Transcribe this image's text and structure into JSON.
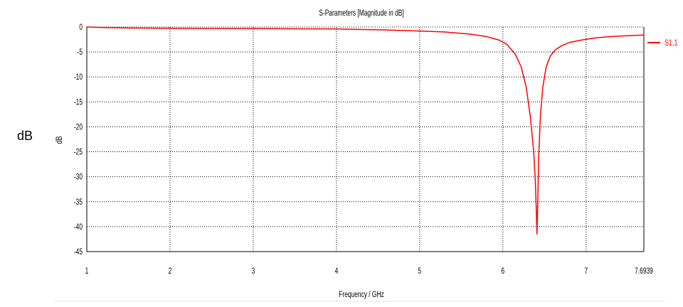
{
  "page": {
    "outer_ylabel": "dB"
  },
  "chart_data": {
    "type": "line",
    "title": "S-Parameters [Magnitude in dB]",
    "xlabel": "Frequency / GHz",
    "ylabel": "dB",
    "xlim": [
      1,
      7.6939
    ],
    "ylim": [
      -45,
      0
    ],
    "x_ticks": [
      1,
      2,
      3,
      4,
      5,
      6,
      7,
      7.6939
    ],
    "x_tick_labels": [
      "1",
      "2",
      "3",
      "4",
      "5",
      "6",
      "7",
      "7.6939"
    ],
    "y_ticks": [
      0,
      -5,
      -10,
      -15,
      -20,
      -25,
      -30,
      -35,
      -40,
      -45
    ],
    "y_tick_labels": [
      "0",
      "-5",
      "-10",
      "-15",
      "-20",
      "-25",
      "-30",
      "-35",
      "-40",
      "-45"
    ],
    "grid": true,
    "legend": "right",
    "series": [
      {
        "name": "S1,1",
        "color": "#ff0000",
        "x": [
          1.0,
          1.2,
          1.5,
          2.0,
          2.5,
          3.0,
          3.5,
          4.0,
          4.5,
          5.0,
          5.3,
          5.6,
          5.8,
          5.95,
          6.05,
          6.15,
          6.22,
          6.28,
          6.33,
          6.37,
          6.39,
          6.4,
          6.41,
          6.42,
          6.43,
          6.45,
          6.48,
          6.52,
          6.57,
          6.63,
          6.7,
          6.8,
          6.95,
          7.1,
          7.3,
          7.5,
          7.6939
        ],
        "y": [
          0.0,
          -0.1,
          -0.2,
          -0.25,
          -0.3,
          -0.3,
          -0.35,
          -0.4,
          -0.55,
          -0.8,
          -1.0,
          -1.4,
          -1.9,
          -2.6,
          -3.5,
          -5.5,
          -8.0,
          -12.0,
          -18.0,
          -25.0,
          -31.0,
          -36.0,
          -41.5,
          -34.0,
          -26.0,
          -18.0,
          -12.0,
          -8.0,
          -5.8,
          -4.6,
          -3.8,
          -3.1,
          -2.6,
          -2.2,
          -1.9,
          -1.75,
          -1.6
        ]
      }
    ]
  }
}
